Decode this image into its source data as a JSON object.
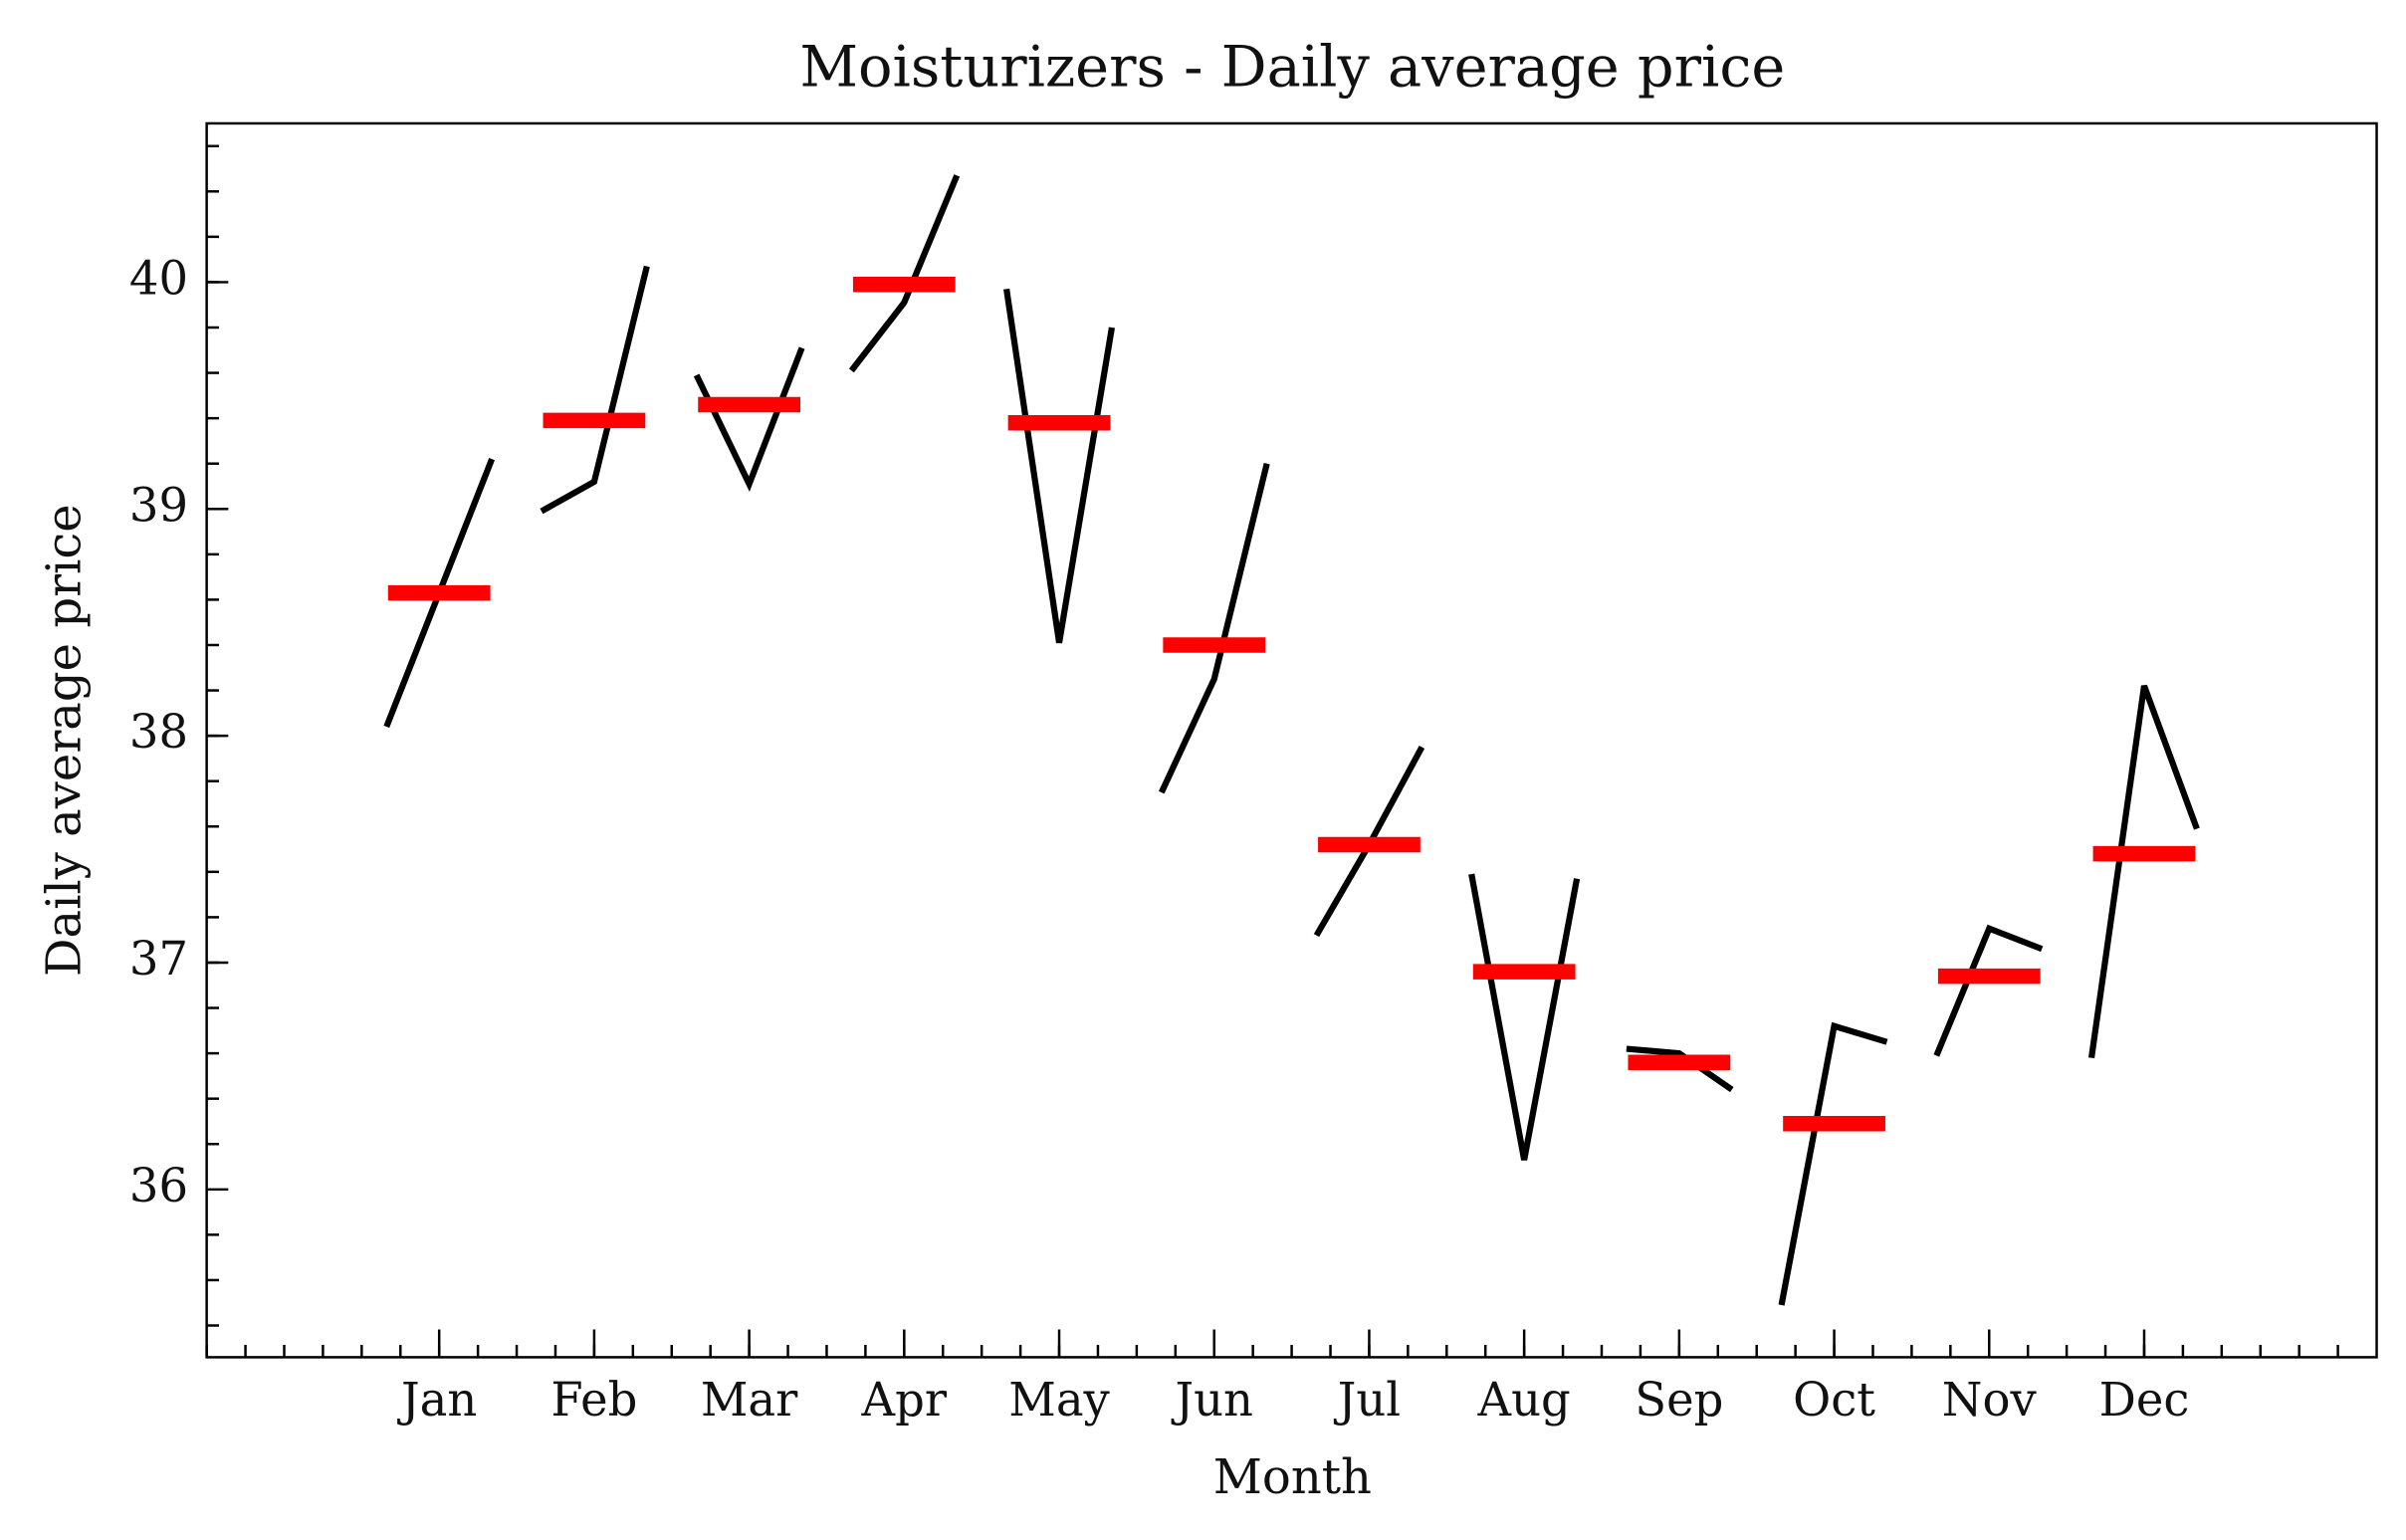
{
  "chart_data": {
    "type": "month_plot",
    "title": "Moisturizers - Daily average price",
    "xlabel": "Month",
    "ylabel": "Daily average price",
    "categories": [
      "Jan",
      "Feb",
      "Mar",
      "Apr",
      "May",
      "Jun",
      "Jul",
      "Aug",
      "Sep",
      "Oct",
      "Nov",
      "Dec"
    ],
    "values": [
      [
        38.04,
        38.63,
        39.22
      ],
      [
        38.99,
        39.12,
        40.07
      ],
      [
        39.59,
        39.11,
        39.71
      ],
      [
        39.61,
        39.91,
        40.47
      ],
      [
        39.97,
        38.41,
        39.8
      ],
      [
        37.75,
        38.25,
        39.2
      ],
      [
        37.12,
        37.52,
        37.95
      ],
      [
        37.39,
        36.13,
        37.37
      ],
      [
        36.62,
        36.6,
        36.44
      ],
      [
        35.49,
        36.72,
        36.65
      ],
      [
        36.59,
        37.15,
        37.06
      ],
      [
        36.58,
        38.22,
        37.59
      ]
    ],
    "means": [
      38.63,
      39.39,
      39.46,
      39.99,
      39.38,
      38.4,
      37.52,
      36.96,
      36.56,
      36.29,
      36.94,
      37.48
    ],
    "line_color": "#000000",
    "mean_color": "#ff0000",
    "xlim": [
      -1.5,
      12.5
    ],
    "ylim": [
      35.26,
      40.7
    ],
    "yticks": [
      36,
      37,
      38,
      39,
      40
    ]
  }
}
